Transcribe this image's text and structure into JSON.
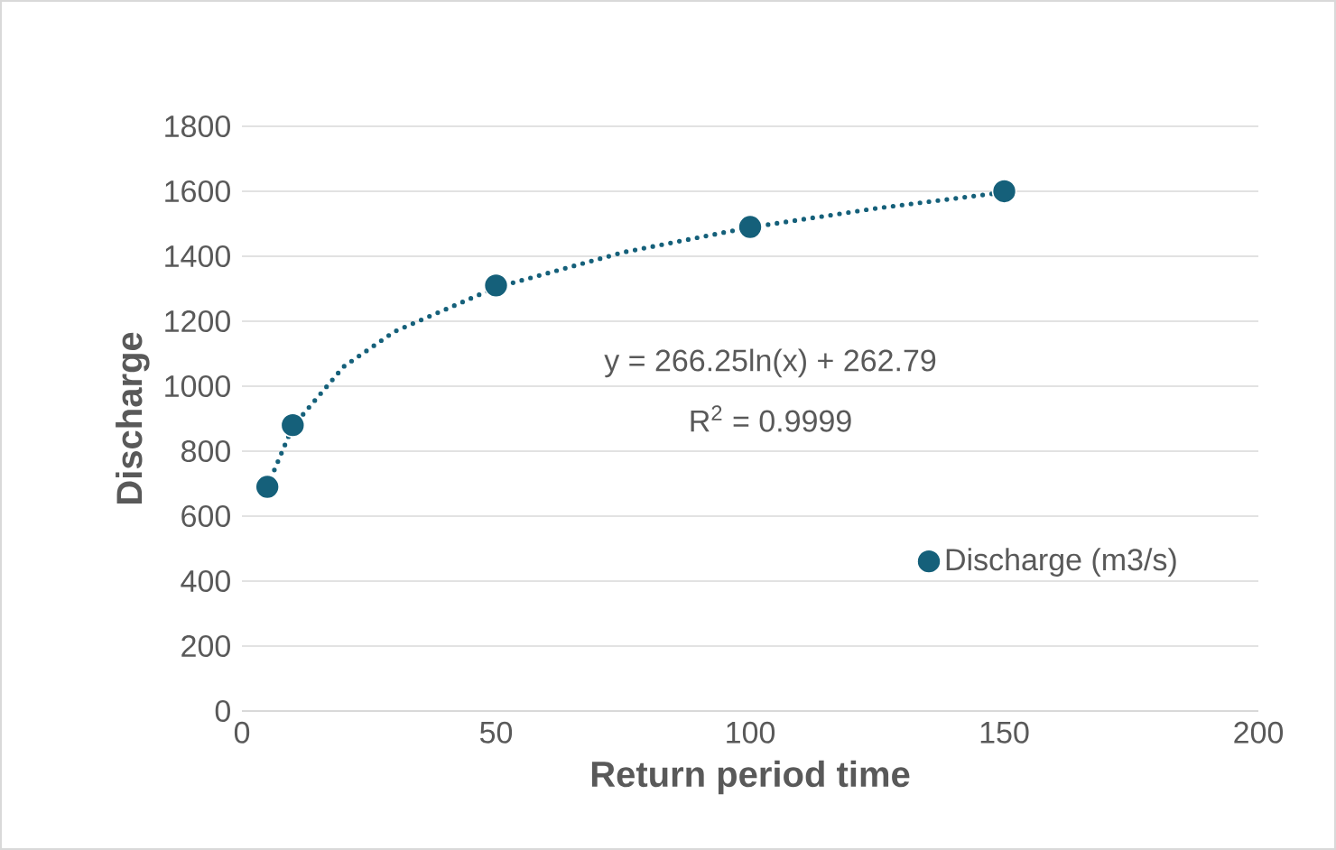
{
  "chart_data": {
    "type": "scatter",
    "xlabel": "Return period time",
    "ylabel": "Discharge",
    "series": [
      {
        "name": "Discharge (m3/s)",
        "color": "#15607a",
        "marker": "circle",
        "x": [
          5,
          10,
          50,
          100,
          150
        ],
        "values": [
          690,
          880,
          1310,
          1490,
          1600
        ]
      },
      {
        "type": "line",
        "color": "#15607a",
        "marker": "none",
        "line_style": "dotted",
        "x": [
          5,
          10,
          20,
          30,
          50,
          75,
          100,
          125,
          150
        ],
        "values": [
          691,
          876,
          1060,
          1168,
          1304,
          1412,
          1489,
          1548,
          1597
        ]
      }
    ],
    "annotations": [
      "y = 266.25ln(x) + 262.79",
      "R$^{2}$ = 0.9999"
    ],
    "xlim": [
      0,
      200
    ],
    "ylim": [
      0,
      1800
    ],
    "xticks": [
      0,
      50,
      100,
      150,
      200
    ],
    "yticks": [
      0,
      200,
      400,
      600,
      800,
      1000,
      1200,
      1400,
      1600,
      1800
    ],
    "grid": "y",
    "legend": "bottom right"
  }
}
